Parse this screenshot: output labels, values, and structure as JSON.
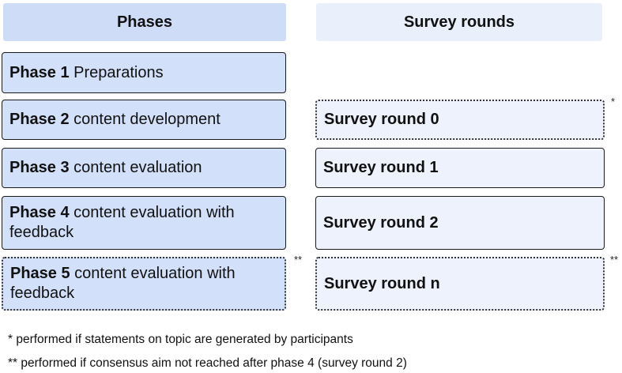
{
  "headers": {
    "phases": "Phases",
    "survey_rounds": "Survey rounds"
  },
  "phases": [
    {
      "label": "Phase 1",
      "text": " Preparations"
    },
    {
      "label": "Phase 2",
      "text": " content development"
    },
    {
      "label": "Phase 3",
      "text": " content evaluation"
    },
    {
      "label": "Phase 4",
      "text": " content evaluation with feedback"
    },
    {
      "label": "Phase 5",
      "text": " content evaluation with feedback"
    }
  ],
  "survey_rounds": [
    "Survey round 0",
    "Survey round 1",
    "Survey round 2",
    "Survey round n"
  ],
  "markers": {
    "single": "*",
    "double": "**"
  },
  "footnotes": [
    "* performed if statements on topic are generated by participants",
    "** performed if consensus aim not reached after phase 4 (survey round 2)"
  ],
  "colors": {
    "phase_fill": "#d3e0fa",
    "survey_fill": "#eef2fc",
    "phases_header_fill": "#cfdcf8",
    "survey_header_fill": "#e9effb"
  }
}
